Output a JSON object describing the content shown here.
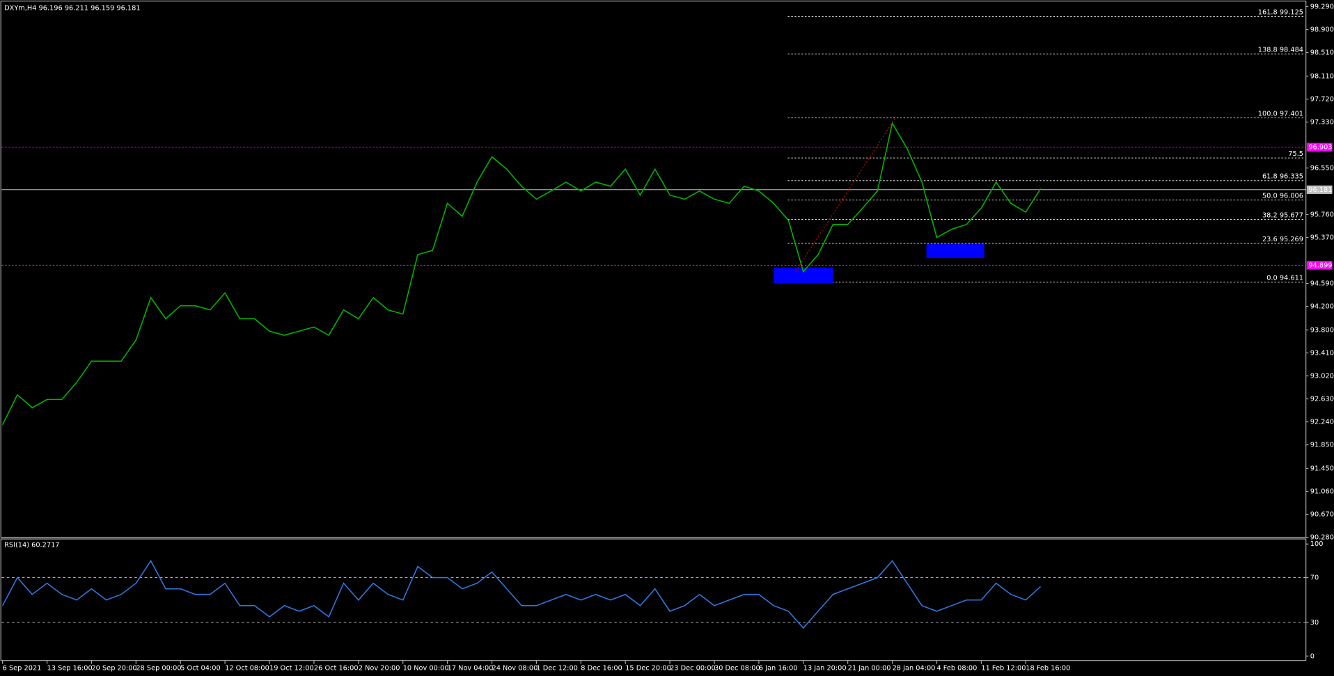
{
  "chart_data": [
    {
      "type": "line",
      "title": "DXYm,H4  96.196 96.211 96.159 96.181",
      "categories": [
        "6 Sep 2021",
        null,
        null,
        "13 Sep 16:00",
        null,
        null,
        "20 Sep 20:00",
        null,
        null,
        "28 Sep 00:00",
        null,
        null,
        "5 Oct 04:00",
        null,
        null,
        "12 Oct 08:00",
        null,
        null,
        "19 Oct 12:00",
        null,
        null,
        "26 Oct 16:00",
        null,
        null,
        "2 Nov 20:00",
        null,
        null,
        "10 Nov 00:00",
        null,
        null,
        "17 Nov 04:00",
        null,
        null,
        "24 Nov 08:00",
        null,
        null,
        "1 Dec 12:00",
        null,
        null,
        "8 Dec 16:00",
        null,
        null,
        "15 Dec 20:00",
        null,
        null,
        "23 Dec 00:00",
        null,
        null,
        "30 Dec 08:00",
        null,
        null,
        "6 Jan 16:00",
        null,
        null,
        "13 Jan 20:00",
        null,
        null,
        "21 Jan 00:00",
        null,
        null,
        "28 Jan 04:00",
        null,
        null,
        "4 Feb 08:00",
        null,
        null,
        "11 Feb 12:00",
        null,
        null,
        "18 Feb 16:00",
        null
      ],
      "series": [
        {
          "name": "DXYm",
          "color": "#00b400",
          "values": [
            92.19,
            92.7,
            92.48,
            92.62,
            92.62,
            92.91,
            93.27,
            93.27,
            93.27,
            93.63,
            94.35,
            93.99,
            94.21,
            94.21,
            94.14,
            94.43,
            93.99,
            93.99,
            93.78,
            93.71,
            93.78,
            93.85,
            93.71,
            94.14,
            93.99,
            94.35,
            94.14,
            94.07,
            95.08,
            95.15,
            95.95,
            95.73,
            96.31,
            96.74,
            96.53,
            96.24,
            96.02,
            96.16,
            96.31,
            96.16,
            96.31,
            96.24,
            96.53,
            96.09,
            96.53,
            96.09,
            96.02,
            96.16,
            96.02,
            95.95,
            96.24,
            96.16,
            95.95,
            95.66,
            94.79,
            95.08,
            95.59,
            95.59,
            95.87,
            96.16,
            97.31,
            96.88,
            96.31,
            95.37,
            95.51,
            95.59,
            95.87,
            96.31,
            95.95,
            95.8,
            96.2
          ]
        }
      ],
      "ylim": [
        90.28,
        99.37
      ],
      "yticks": [
        {
          "value": 99.29,
          "label": "99.290"
        },
        {
          "value": 98.9,
          "label": "98.900"
        },
        {
          "value": 98.51,
          "label": "98.510"
        },
        {
          "value": 98.11,
          "label": "98.110"
        },
        {
          "value": 97.72,
          "label": "97.720"
        },
        {
          "value": 97.33,
          "label": "97.330"
        },
        {
          "value": 96.55,
          "label": "96.550"
        },
        {
          "value": 95.76,
          "label": "95.760"
        },
        {
          "value": 95.37,
          "label": "95.370"
        },
        {
          "value": 94.59,
          "label": "94.590"
        },
        {
          "value": 94.2,
          "label": "94.200"
        },
        {
          "value": 93.8,
          "label": "93.800"
        },
        {
          "value": 93.41,
          "label": "93.410"
        },
        {
          "value": 93.02,
          "label": "93.020"
        },
        {
          "value": 92.63,
          "label": "92.630"
        },
        {
          "value": 92.24,
          "label": "92.240"
        },
        {
          "value": 91.85,
          "label": "91.850"
        },
        {
          "value": 91.45,
          "label": "91.450"
        },
        {
          "value": 91.06,
          "label": "91.060"
        },
        {
          "value": 90.67,
          "label": "90.670"
        },
        {
          "value": 90.28,
          "label": "90.280"
        }
      ],
      "levels": [
        {
          "value": 99.125,
          "label": "161.8 99.125"
        },
        {
          "value": 98.484,
          "label": "138.8 98.484"
        },
        {
          "value": 97.401,
          "label": "100.0 97.401"
        },
        {
          "value": 96.72,
          "label": "75.5"
        },
        {
          "value": 96.335,
          "label": "61.8 96.335"
        },
        {
          "value": 96.006,
          "label": "50.0 96.006"
        },
        {
          "value": 95.677,
          "label": "38.2 95.677"
        },
        {
          "value": 95.269,
          "label": "23.6 95.269"
        },
        {
          "value": 94.611,
          "label": "0.0 94.611"
        }
      ],
      "hlines": [
        {
          "value": 96.903,
          "label": "96.903",
          "color": "#ff00ff"
        },
        {
          "value": 94.899,
          "label": "94.899",
          "color": "#ff00ff"
        },
        {
          "value": 96.181,
          "label": "96.181",
          "color": "#c0c0c0"
        }
      ],
      "zones": [
        {
          "x": [
            52,
            56
          ],
          "y": [
            94.59,
            94.86
          ],
          "color": "#0000ff"
        },
        {
          "x": [
            62.3,
            66.2
          ],
          "y": [
            95.02,
            95.26
          ],
          "color": "#0000ff"
        }
      ],
      "trendline": {
        "x": [
          53.5,
          60.2
        ],
        "y": [
          94.8,
          97.4
        ],
        "color": "#c00000"
      }
    },
    {
      "type": "line",
      "title": "RSI(14) 60.2717",
      "series": [
        {
          "name": "RSI(14)",
          "color": "#2f78e0",
          "values": [
            45,
            70,
            55,
            65,
            55,
            50,
            60,
            50,
            55,
            65,
            85,
            60,
            60,
            55,
            55,
            65,
            45,
            45,
            35,
            45,
            40,
            45,
            35,
            65,
            50,
            65,
            55,
            50,
            80,
            70,
            70,
            60,
            65,
            75,
            60,
            45,
            45,
            50,
            55,
            50,
            55,
            50,
            55,
            45,
            60,
            40,
            45,
            55,
            45,
            50,
            55,
            55,
            45,
            40,
            25,
            40,
            55,
            60,
            65,
            70,
            85,
            65,
            45,
            40,
            45,
            50,
            50,
            65,
            55,
            50,
            62
          ]
        }
      ],
      "ylim": [
        -4,
        104.5
      ],
      "yticks": [
        0,
        30,
        70,
        100
      ],
      "levels": [
        30,
        70
      ]
    }
  ]
}
